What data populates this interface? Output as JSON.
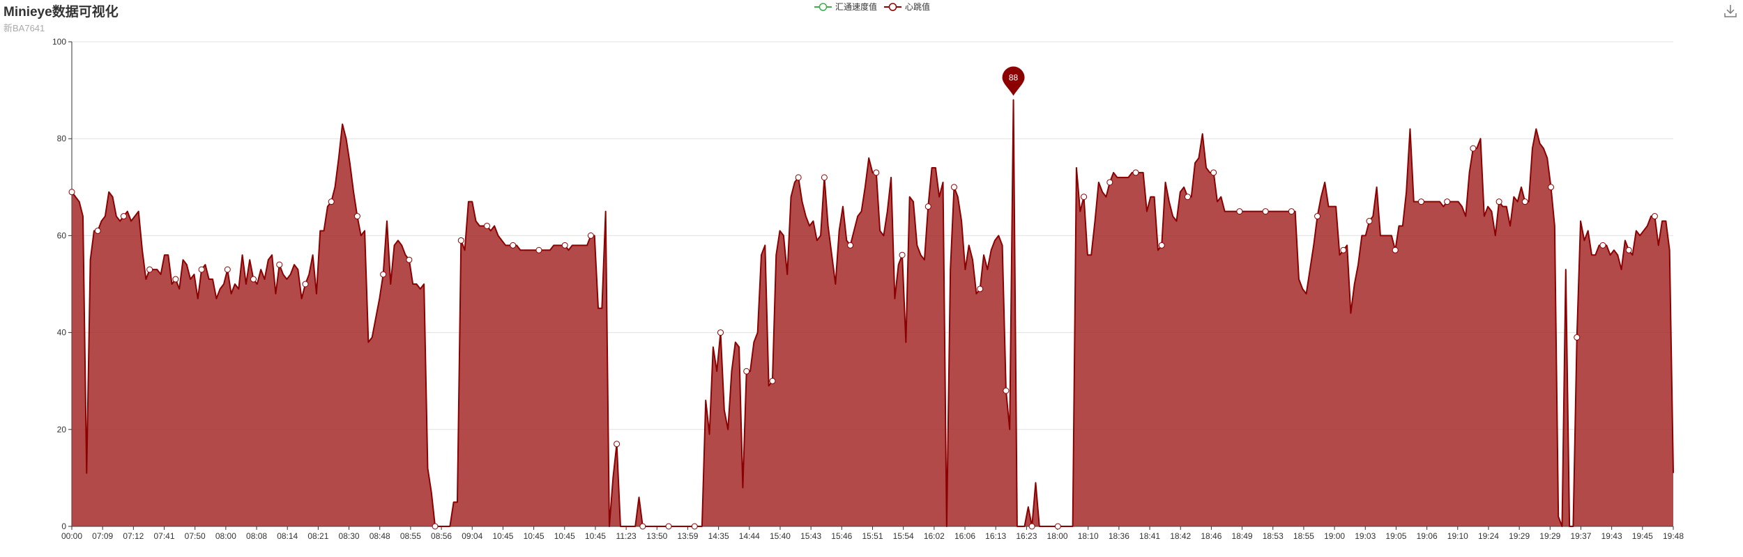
{
  "title": "Minieye数据可视化",
  "subtitle": "新BA7641",
  "toolbox": {
    "icon": "download-icon"
  },
  "chart_data": {
    "type": "area",
    "title": "Minieye数据可视化",
    "subtitle": "新BA7641",
    "legend": [
      {
        "name": "汇通速度值",
        "color": "#3fae49"
      },
      {
        "name": "心跳值",
        "color": "#8b0000"
      }
    ],
    "legend_position": "top-center",
    "grid": true,
    "ylim": [
      0,
      100
    ],
    "yticks": [
      0,
      20,
      40,
      60,
      80,
      100
    ],
    "xtick_labels": [
      "00:00",
      "07:09",
      "07:12",
      "07:41",
      "07:50",
      "08:00",
      "08:08",
      "08:14",
      "08:21",
      "08:30",
      "08:48",
      "08:55",
      "08:56",
      "09:04",
      "10:45",
      "10:45",
      "10:45",
      "10:45",
      "11:23",
      "13:50",
      "13:59",
      "14:35",
      "14:44",
      "15:40",
      "15:43",
      "15:46",
      "15:51",
      "15:54",
      "16:02",
      "16:06",
      "16:13",
      "16:23",
      "18:00",
      "18:10",
      "18:36",
      "18:41",
      "18:42",
      "18:46",
      "18:49",
      "18:53",
      "18:55",
      "19:00",
      "19:03",
      "19:05",
      "19:06",
      "19:10",
      "19:24",
      "19:29",
      "19:29",
      "19:37",
      "19:43",
      "19:45",
      "19:48"
    ],
    "series": [
      {
        "name": "汇通速度值",
        "color": "#3fae49",
        "values": []
      },
      {
        "name": "心跳值",
        "color": "#8b0000",
        "fill": "#a52a2a",
        "values": [
          69,
          68,
          67,
          64,
          11,
          55,
          61,
          61,
          63,
          64,
          69,
          68,
          64,
          63,
          64,
          65,
          63,
          64,
          65,
          57,
          51,
          53,
          53,
          53,
          52,
          56,
          56,
          50,
          51,
          49,
          55,
          54,
          51,
          52,
          47,
          53,
          54,
          51,
          51,
          47,
          49,
          50,
          53,
          48,
          50,
          49,
          56,
          50,
          55,
          51,
          50,
          53,
          51,
          55,
          56,
          48,
          54,
          52,
          51,
          52,
          54,
          53,
          47,
          50,
          52,
          56,
          48,
          61,
          61,
          66,
          67,
          70,
          76,
          83,
          80,
          75,
          69,
          64,
          60,
          61,
          38,
          39,
          43,
          47,
          52,
          63,
          50,
          58,
          59,
          58,
          56,
          55,
          50,
          50,
          49,
          50,
          12,
          7,
          0,
          0,
          0,
          0,
          0,
          5,
          5,
          59,
          57,
          67,
          67,
          63,
          62,
          62,
          62,
          61,
          62,
          60,
          59,
          58,
          58,
          58,
          58,
          57,
          57,
          57,
          57,
          57,
          57,
          57,
          57,
          57,
          58,
          58,
          58,
          58,
          57,
          58,
          58,
          58,
          58,
          58,
          60,
          60,
          45,
          45,
          65,
          0,
          10,
          17,
          0,
          0,
          0,
          0,
          0,
          6,
          0,
          0,
          0,
          0,
          0,
          0,
          0,
          0,
          0,
          0,
          0,
          0,
          0,
          0,
          0,
          0,
          0,
          26,
          19,
          37,
          32,
          40,
          24,
          20,
          32,
          38,
          37,
          8,
          32,
          32,
          38,
          40,
          56,
          58,
          29,
          30,
          56,
          61,
          60,
          52,
          68,
          71,
          72,
          67,
          64,
          62,
          63,
          59,
          60,
          72,
          62,
          56,
          50,
          61,
          66,
          59,
          58,
          61,
          64,
          65,
          70,
          76,
          73,
          73,
          61,
          60,
          65,
          72,
          47,
          54,
          56,
          38,
          68,
          67,
          58,
          56,
          55,
          66,
          74,
          74,
          68,
          71,
          0,
          53,
          70,
          68,
          63,
          53,
          58,
          55,
          48,
          49,
          56,
          53,
          57,
          59,
          60,
          58,
          28,
          20,
          88,
          0,
          0,
          0,
          4,
          0,
          9,
          0,
          0,
          0,
          0,
          0,
          0,
          0,
          0,
          0,
          0,
          74,
          65,
          68,
          56,
          56,
          63,
          71,
          69,
          68,
          71,
          73,
          72,
          72,
          72,
          72,
          73,
          73,
          73,
          73,
          65,
          68,
          68,
          57,
          58,
          71,
          67,
          64,
          63,
          69,
          70,
          68,
          68,
          75,
          76,
          81,
          74,
          73,
          73,
          67,
          68,
          65,
          65,
          65,
          65,
          65,
          65,
          65,
          65,
          65,
          65,
          65,
          65,
          65,
          65,
          65,
          65,
          65,
          65,
          65,
          65,
          51,
          49,
          48,
          53,
          58,
          64,
          68,
          71,
          66,
          66,
          66,
          56,
          57,
          58,
          44,
          50,
          54,
          60,
          60,
          63,
          64,
          70,
          60,
          60,
          60,
          60,
          57,
          62,
          62,
          69,
          82,
          67,
          67,
          67,
          67,
          67,
          67,
          67,
          67,
          66,
          67,
          67,
          67,
          67,
          66,
          64,
          73,
          78,
          78,
          80,
          64,
          66,
          65,
          60,
          67,
          66,
          66,
          62,
          68,
          67,
          70,
          67,
          67,
          78,
          82,
          79,
          78,
          76,
          70,
          62,
          2,
          0,
          53,
          0,
          0,
          39,
          63,
          59,
          61,
          56,
          56,
          58,
          58,
          58,
          56,
          57,
          56,
          53,
          59,
          57,
          56,
          61,
          60,
          61,
          62,
          64,
          64,
          58,
          63,
          63,
          57,
          11
        ]
      }
    ],
    "markPoint": {
      "label": "88",
      "value": 88
    }
  }
}
